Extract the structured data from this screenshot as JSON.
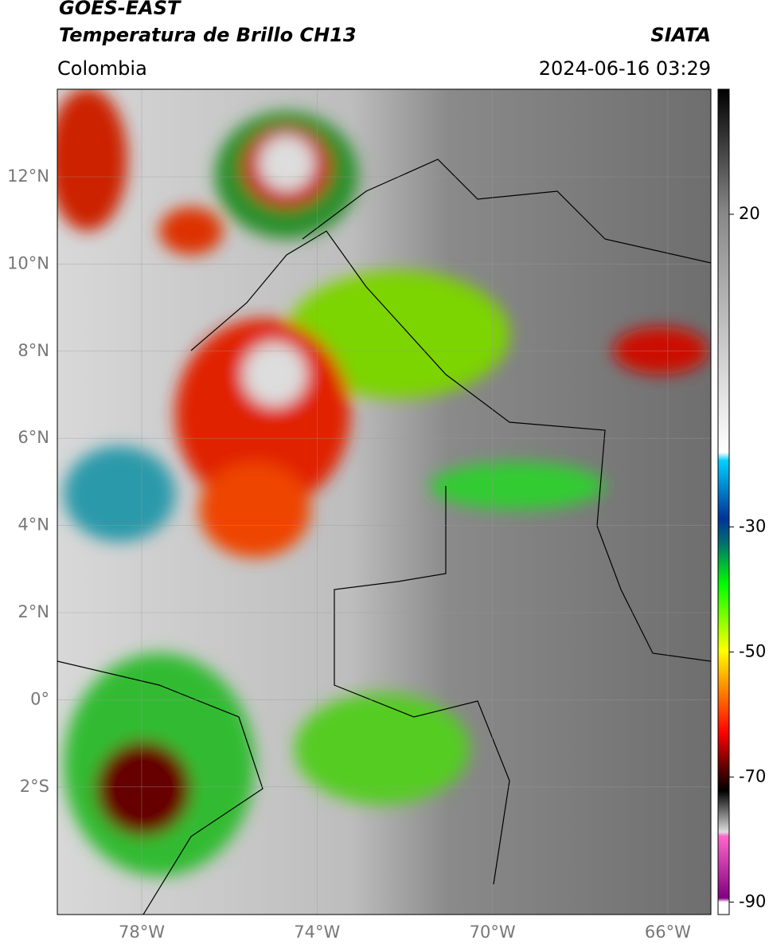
{
  "header": {
    "title_line1": "GOES-EAST",
    "title_line2": "Temperatura de Brillo CH13",
    "region": "Colombia",
    "agency": "SIATA",
    "timestamp": "2024-06-16 03:29"
  },
  "map": {
    "lat_labels": [
      "12°N",
      "10°N",
      "8°N",
      "6°N",
      "4°N",
      "2°N",
      "0°",
      "2°S"
    ],
    "lon_labels": [
      "78°W",
      "74°W",
      "70°W",
      "66°W"
    ]
  },
  "colorbar": {
    "lim": [
      -92,
      40
    ],
    "ticks": [
      20,
      -30,
      -50,
      -70,
      -90
    ]
  }
}
